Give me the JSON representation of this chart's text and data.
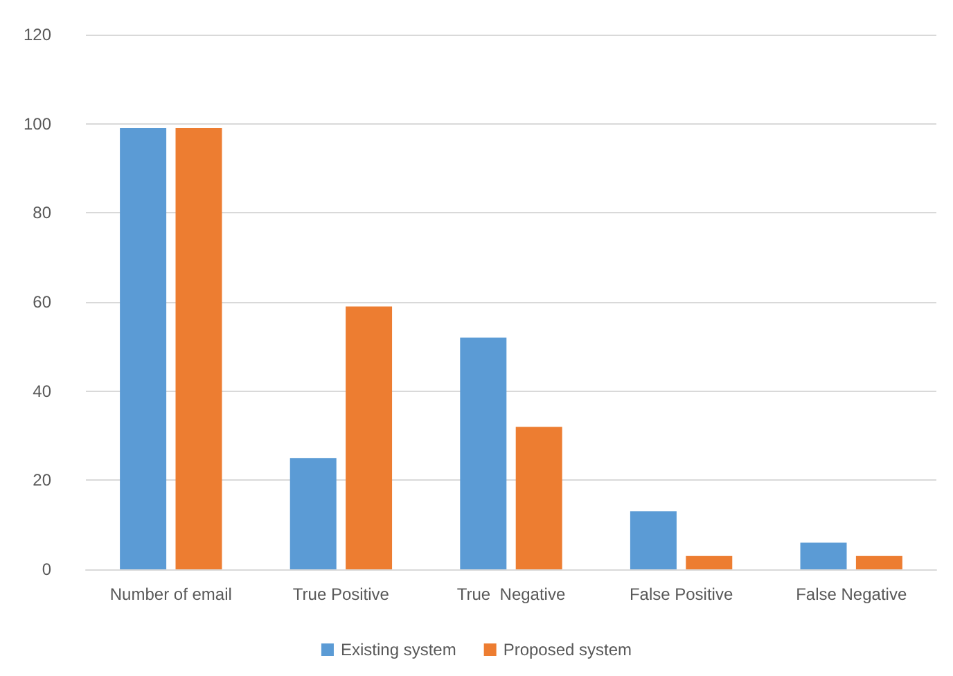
{
  "chart_data": {
    "type": "bar",
    "categories": [
      "Number of email",
      "True Positive",
      "True  Negative",
      "False Positive",
      "False Negative"
    ],
    "series": [
      {
        "name": "Existing system",
        "color": "#5b9bd5",
        "values": [
          99,
          25,
          52,
          13,
          6
        ]
      },
      {
        "name": "Proposed system",
        "color": "#ed7d31",
        "values": [
          99,
          59,
          32,
          3,
          3
        ]
      }
    ],
    "ylim": [
      0,
      120
    ],
    "yticks": [
      0,
      20,
      40,
      60,
      80,
      100,
      120
    ],
    "grid": "y",
    "legend": "bottom"
  }
}
